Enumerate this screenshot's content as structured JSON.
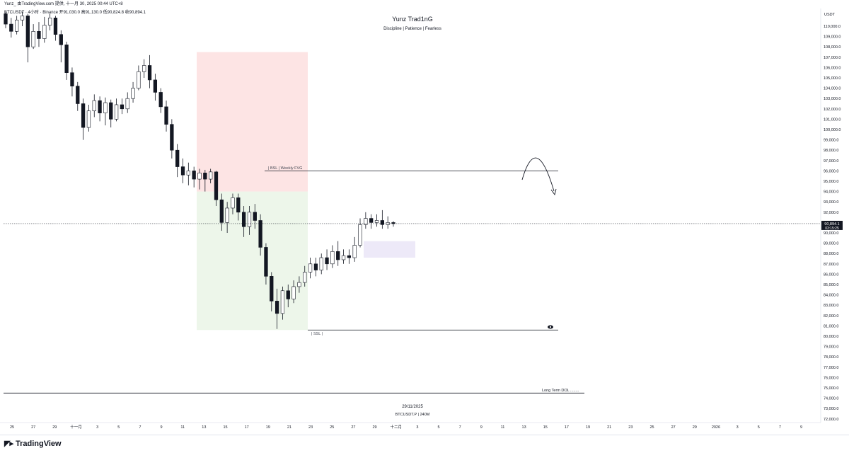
{
  "header": {
    "publisher": "Yunz_ 由TradingView.com 提供, 十一月 30, 2025 00:44 UTC+8",
    "symbol_line": "BTCUSDT · 4小时 · Binance  开91,030.0  高91,130.0  低90,824.8  收90,894.1"
  },
  "watermark": {
    "title": "Yunz Trad1nG",
    "subtitle": "Discipline | Patience | Fearless",
    "date": "29/11/2025",
    "symbol": "BTCUSDT.P | 240M"
  },
  "footer": {
    "brand": "TradingView"
  },
  "chart_data": {
    "type": "candlestick",
    "symbol": "BTCUSDT.P",
    "currency": "USDT",
    "timeframe": "240M",
    "ylim": [
      72000,
      111500
    ],
    "y_ticks": [
      110000,
      109000,
      108000,
      107000,
      106000,
      105000,
      104000,
      103000,
      102000,
      101000,
      100000,
      99000,
      98000,
      97000,
      96000,
      95000,
      94000,
      93000,
      92000,
      91000,
      90000,
      89000,
      88000,
      87000,
      86000,
      85000,
      84000,
      83000,
      82000,
      81000,
      80000,
      79000,
      78000,
      77000,
      76000,
      75000,
      74000,
      73000,
      72000
    ],
    "x_ticks": [
      "25",
      "27",
      "29",
      "十一月",
      "3",
      "5",
      "7",
      "9",
      "11",
      "13",
      "15",
      "17",
      "19",
      "21",
      "23",
      "25",
      "27",
      "29",
      "十二月",
      "3",
      "5",
      "7",
      "9",
      "11",
      "13",
      "15",
      "17",
      "19",
      "21",
      "23",
      "25",
      "27",
      "29",
      "2026",
      "3",
      "5",
      "7",
      "9"
    ],
    "last_price": "90,894.1",
    "countdown": "03:15:25",
    "candles_approx": [
      [
        111200,
        110200,
        111400,
        109800
      ],
      [
        110200,
        109500,
        110800,
        108900
      ],
      [
        109500,
        110600,
        111000,
        109200
      ],
      [
        110600,
        111000,
        111400,
        110000
      ],
      [
        111000,
        108000,
        111200,
        106500
      ],
      [
        108000,
        109500,
        110200,
        107800
      ],
      [
        109500,
        108800,
        110400,
        108000
      ],
      [
        108800,
        110100,
        110900,
        108400
      ],
      [
        110100,
        110800,
        111200,
        109600
      ],
      [
        110800,
        109200,
        111000,
        108600
      ],
      [
        109200,
        108200,
        109600,
        106500
      ],
      [
        108200,
        105500,
        108500,
        104800
      ],
      [
        105500,
        104200,
        106000,
        103200
      ],
      [
        104200,
        102500,
        104600,
        101800
      ],
      [
        102500,
        100200,
        103000,
        99000
      ],
      [
        100200,
        101800,
        102400,
        99800
      ],
      [
        101800,
        102800,
        103400,
        101200
      ],
      [
        102800,
        101600,
        103200,
        100800
      ],
      [
        101600,
        102600,
        103100,
        100400
      ],
      [
        102600,
        101000,
        102900,
        100200
      ],
      [
        101000,
        102400,
        103000,
        100800
      ],
      [
        102400,
        102000,
        103000,
        101500
      ],
      [
        102000,
        103000,
        103600,
        101600
      ],
      [
        103000,
        104000,
        104600,
        102600
      ],
      [
        104000,
        105600,
        106200,
        103800
      ],
      [
        105600,
        106200,
        106800,
        105000
      ],
      [
        106200,
        104800,
        107200,
        104000
      ],
      [
        104800,
        103600,
        105400,
        102800
      ],
      [
        103600,
        102200,
        104000,
        101600
      ],
      [
        102200,
        100500,
        102800,
        99800
      ],
      [
        100500,
        98000,
        101000,
        97200
      ],
      [
        98000,
        96400,
        98600,
        95400
      ],
      [
        96400,
        95600,
        97200,
        94800
      ],
      [
        95600,
        96000,
        96800,
        94600
      ],
      [
        96000,
        95200,
        96400,
        94400
      ],
      [
        95200,
        95800,
        96200,
        94200
      ],
      [
        95800,
        95200,
        96100,
        94000
      ],
      [
        95200,
        95900,
        96200,
        94800
      ],
      [
        95900,
        93200,
        96000,
        92600
      ],
      [
        93200,
        91000,
        93800,
        90200
      ],
      [
        91000,
        92400,
        93000,
        90000
      ],
      [
        92400,
        93400,
        93800,
        91800
      ],
      [
        93400,
        92000,
        93800,
        91200
      ],
      [
        92000,
        90600,
        92600,
        89600
      ],
      [
        90600,
        92000,
        92600,
        89800
      ],
      [
        92000,
        91200,
        92800,
        90400
      ],
      [
        91200,
        88600,
        91800,
        87800
      ],
      [
        88600,
        85800,
        89000,
        85000
      ],
      [
        85800,
        83400,
        86200,
        82400
      ],
      [
        83400,
        82200,
        84600,
        80700
      ],
      [
        82200,
        84400,
        84800,
        81600
      ],
      [
        84400,
        83600,
        85000,
        82800
      ],
      [
        83600,
        84800,
        85400,
        83200
      ],
      [
        84800,
        85200,
        85800,
        84200
      ],
      [
        85200,
        86200,
        86800,
        84800
      ],
      [
        86200,
        87000,
        87600,
        85600
      ],
      [
        87000,
        86400,
        87600,
        85800
      ],
      [
        86400,
        87600,
        88000,
        86000
      ],
      [
        87600,
        87000,
        88400,
        86400
      ],
      [
        87000,
        88200,
        88800,
        86600
      ],
      [
        88200,
        87400,
        89200,
        86800
      ],
      [
        87400,
        87800,
        88400,
        87000
      ],
      [
        87800,
        87600,
        88400,
        87000
      ],
      [
        87600,
        88800,
        89600,
        87200
      ],
      [
        88800,
        90800,
        91400,
        88600
      ],
      [
        90800,
        91400,
        92000,
        90400
      ],
      [
        91400,
        91000,
        91800,
        90400
      ],
      [
        91000,
        91200,
        91800,
        90600
      ],
      [
        91200,
        90800,
        92200,
        90400
      ],
      [
        90800,
        91000,
        91600,
        90400
      ],
      [
        91000,
        90894,
        91130,
        90600
      ]
    ],
    "zones": [
      {
        "name": "stop-zone",
        "color": "#fde4e4",
        "from": 107500,
        "to": 94000
      },
      {
        "name": "target-zone",
        "color": "#edf6ea",
        "from": 94000,
        "to": 80600
      },
      {
        "name": "fvg-box",
        "color": "#ede9f8",
        "from": 89200,
        "to": 87600
      }
    ],
    "levels": [
      {
        "label": "| BSL | Weekly FVG",
        "price": 96000
      },
      {
        "label": "| SSL |",
        "price": 80600
      },
      {
        "label": "Long Term DOL ........",
        "price": 74500
      }
    ]
  }
}
